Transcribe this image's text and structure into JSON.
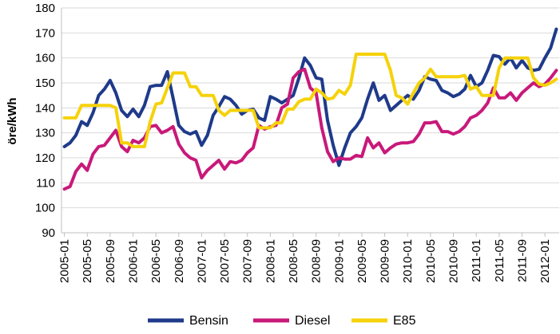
{
  "chart_data": {
    "type": "line",
    "ylabel": "öre/kWh",
    "xlabel": "",
    "ylim": [
      90,
      180
    ],
    "yticks": [
      90,
      100,
      110,
      120,
      130,
      140,
      150,
      160,
      170,
      180
    ],
    "grid": true,
    "legend_position": "bottom",
    "x": [
      "2005-01",
      "2005-02",
      "2005-03",
      "2005-04",
      "2005-05",
      "2005-06",
      "2005-07",
      "2005-08",
      "2005-09",
      "2005-10",
      "2005-11",
      "2005-12",
      "2006-01",
      "2006-02",
      "2006-03",
      "2006-04",
      "2006-05",
      "2006-06",
      "2006-07",
      "2006-08",
      "2006-09",
      "2006-10",
      "2006-11",
      "2006-12",
      "2007-01",
      "2007-02",
      "2007-03",
      "2007-04",
      "2007-05",
      "2007-06",
      "2007-07",
      "2007-08",
      "2007-09",
      "2007-10",
      "2007-11",
      "2007-12",
      "2008-01",
      "2008-02",
      "2008-03",
      "2008-04",
      "2008-05",
      "2008-06",
      "2008-07",
      "2008-08",
      "2008-09",
      "2008-10",
      "2008-11",
      "2008-12",
      "2009-01",
      "2009-02",
      "2009-03",
      "2009-04",
      "2009-05",
      "2009-06",
      "2009-07",
      "2009-08",
      "2009-09",
      "2009-10",
      "2009-11",
      "2009-12",
      "2010-01",
      "2010-02",
      "2010-03",
      "2010-04",
      "2010-05",
      "2010-06",
      "2010-07",
      "2010-08",
      "2010-09",
      "2010-10",
      "2010-11",
      "2010-12",
      "2011-01",
      "2011-02",
      "2011-03",
      "2011-04",
      "2011-05",
      "2011-06",
      "2011-07",
      "2011-08",
      "2011-09",
      "2011-10",
      "2011-11",
      "2011-12",
      "2012-01",
      "2012-02",
      "2012-03"
    ],
    "x_tick_labels": [
      "2005-01",
      "2005-05",
      "2005-09",
      "2006-01",
      "2006-05",
      "2006-09",
      "2007-01",
      "2007-05",
      "2007-09",
      "2008-01",
      "2008-05",
      "2008-09",
      "2009-01",
      "2009-05",
      "2009-09",
      "2010-01",
      "2010-05",
      "2010-09",
      "2011-01",
      "2011-05",
      "2011-09",
      "2012-01"
    ],
    "series": [
      {
        "name": "Bensin",
        "color": "#1f3a8a",
        "values": [
          124.5,
          126,
          129,
          134.5,
          133,
          138,
          145,
          147.5,
          151,
          146,
          139,
          136.5,
          139.5,
          136.5,
          141,
          148.5,
          149,
          149,
          154.5,
          144,
          133,
          130.5,
          129.5,
          130.5,
          125,
          129,
          137,
          140.5,
          144.5,
          143.5,
          141,
          137.5,
          139,
          139.5,
          136,
          135,
          144.5,
          143.5,
          142,
          143.5,
          145,
          152,
          160,
          157,
          152,
          151.5,
          135,
          125,
          117,
          124,
          130,
          132.5,
          136,
          143.5,
          150,
          143,
          145,
          139,
          141,
          143,
          145,
          143.5,
          147,
          152.5,
          151.5,
          151,
          147,
          146,
          144.5,
          145.5,
          147.5,
          153,
          148.5,
          150,
          155,
          161,
          160.5,
          157.5,
          160,
          156,
          159,
          156,
          155,
          155.5,
          160,
          164,
          171.5
        ]
      },
      {
        "name": "Diesel",
        "color": "#c8197a",
        "values": [
          107.5,
          108.5,
          114.5,
          117.5,
          115,
          121.5,
          124.5,
          125,
          128,
          131,
          124.5,
          122.5,
          127,
          126,
          128,
          132.5,
          133,
          130,
          131,
          132.5,
          125.5,
          122,
          120,
          119,
          112,
          115,
          117,
          119,
          115.5,
          118.5,
          118,
          119,
          122,
          124,
          133,
          131.5,
          132.5,
          133,
          140,
          141.5,
          152,
          154.5,
          155.5,
          148,
          146,
          132,
          122.5,
          118.5,
          120,
          119.5,
          119.5,
          121,
          120.5,
          128,
          124,
          126,
          122,
          124,
          125.5,
          126,
          126,
          126.5,
          129.5,
          134,
          134,
          134.5,
          130.5,
          130.5,
          129.5,
          130.5,
          132.5,
          136,
          137,
          139,
          142,
          148,
          144,
          144,
          146,
          143,
          146,
          148,
          150,
          148.5,
          149.5,
          152,
          155
        ]
      },
      {
        "name": "E85",
        "color": "#f5d20a",
        "values": [
          136,
          136,
          136,
          141,
          141,
          141,
          141,
          141,
          141,
          140,
          126,
          126,
          124.5,
          124.5,
          124.5,
          134.5,
          141.5,
          142,
          148,
          154,
          154,
          154,
          148.5,
          148.5,
          145,
          145,
          145,
          139,
          137,
          139,
          139,
          139,
          139,
          139,
          132,
          132,
          132,
          134,
          134,
          139.5,
          139.5,
          142.5,
          143.5,
          143.5,
          147.5,
          146,
          143.5,
          144,
          147,
          145.5,
          149,
          161.5,
          161.5,
          161.5,
          161.5,
          161.5,
          161.5,
          155,
          145,
          144,
          141.5,
          146,
          150,
          152,
          155.5,
          152.5,
          152.5,
          152.5,
          152.5,
          152.5,
          153,
          147.5,
          148.5,
          145,
          145,
          145,
          156,
          160,
          160,
          160,
          160,
          160,
          152,
          149.5,
          149,
          150,
          151.5
        ]
      }
    ]
  }
}
